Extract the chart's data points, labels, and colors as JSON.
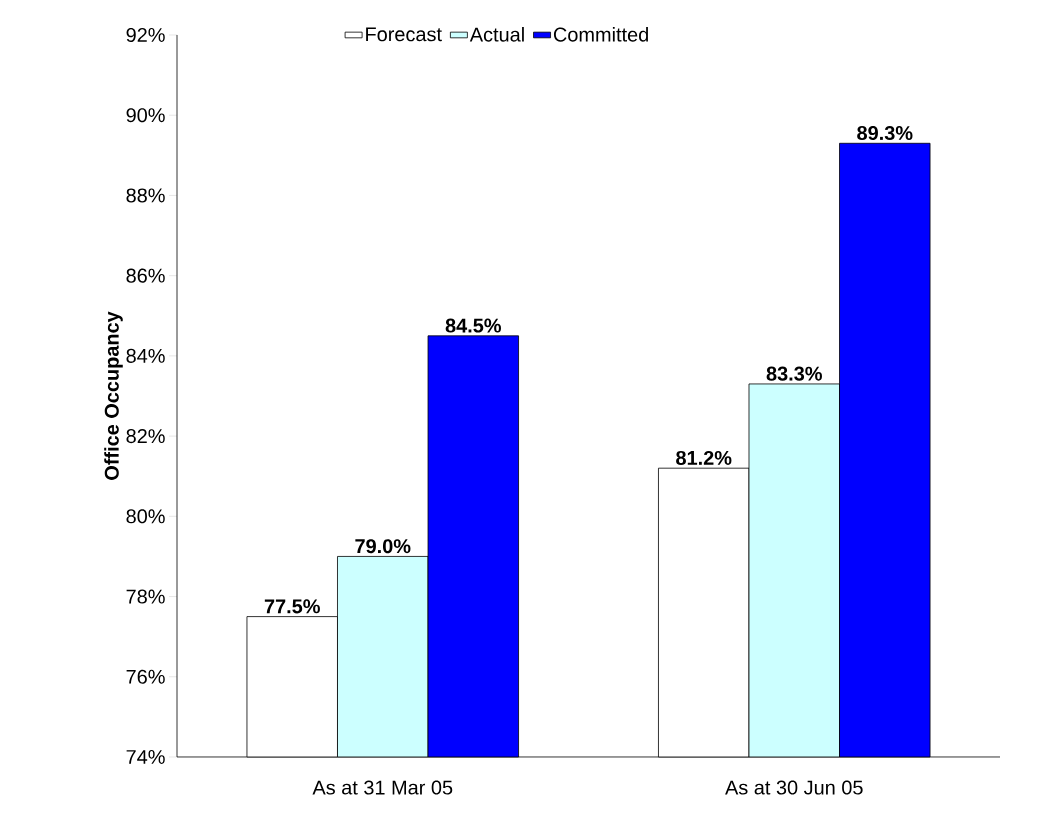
{
  "chart_data": {
    "type": "bar",
    "ylabel": "Office Occupancy",
    "categories": [
      "As at 31 Mar 05",
      "As at 30 Jun 05"
    ],
    "series": [
      {
        "name": "Forecast",
        "color": "#ffffff",
        "values": [
          77.5,
          81.2
        ],
        "value_labels": [
          "77.5%",
          "81.2%"
        ]
      },
      {
        "name": "Actual",
        "color": "#ccffff",
        "values": [
          79.0,
          83.3
        ],
        "value_labels": [
          "79.0%",
          "83.3%"
        ]
      },
      {
        "name": "Committed",
        "color": "#0000ff",
        "values": [
          84.5,
          89.3
        ],
        "value_labels": [
          "84.5%",
          "89.3%"
        ]
      }
    ],
    "ylim": [
      74,
      92
    ],
    "yticks": [
      {
        "value": 74,
        "label": "74%"
      },
      {
        "value": 76,
        "label": "76%"
      },
      {
        "value": 78,
        "label": "78%"
      },
      {
        "value": 80,
        "label": "80%"
      },
      {
        "value": 82,
        "label": "82%"
      },
      {
        "value": 84,
        "label": "84%"
      },
      {
        "value": 86,
        "label": "86%"
      },
      {
        "value": 88,
        "label": "88%"
      },
      {
        "value": 90,
        "label": "90%"
      },
      {
        "value": 92,
        "label": "92%"
      }
    ],
    "legend": "top",
    "grid": false
  }
}
